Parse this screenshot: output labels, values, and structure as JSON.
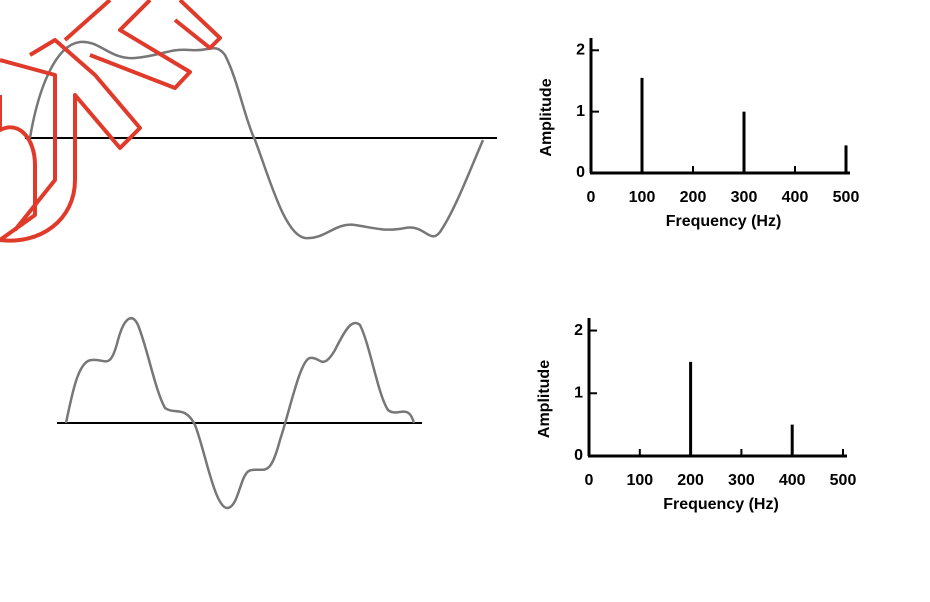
{
  "chart_data": [
    {
      "type": "stem",
      "x": [
        100,
        300,
        500
      ],
      "values": [
        1.55,
        1.0,
        0.45
      ],
      "xlim": [
        0,
        500
      ],
      "xticks": [
        0,
        100,
        200,
        300,
        400,
        500
      ],
      "ylim": [
        0,
        2.2
      ],
      "yticks": [
        0,
        1,
        2
      ],
      "xlabel": "Frequency (Hz)",
      "ylabel": "Amplitude",
      "color": "#000000"
    },
    {
      "type": "stem",
      "x": [
        200,
        400
      ],
      "values": [
        1.5,
        0.5
      ],
      "xlim": [
        0,
        500
      ],
      "xticks": [
        0,
        100,
        200,
        300,
        400,
        500
      ],
      "ylim": [
        0,
        2.2
      ],
      "yticks": [
        0,
        1,
        2
      ],
      "xlabel": "Frequency (Hz)",
      "ylabel": "Amplitude",
      "color": "#000000"
    }
  ]
}
